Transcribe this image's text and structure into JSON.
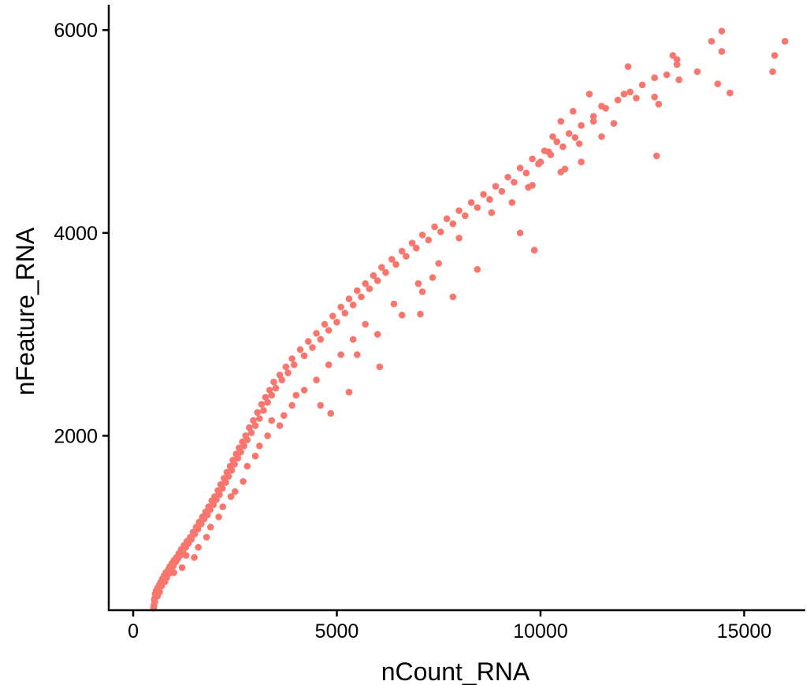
{
  "chart_data": {
    "type": "scatter",
    "title": "",
    "xlabel": "nCount_RNA",
    "ylabel": "nFeature_RNA",
    "xlim": [
      -600,
      16500
    ],
    "ylim": [
      280,
      6250
    ],
    "xticks": [
      0,
      5000,
      10000,
      15000
    ],
    "yticks": [
      2000,
      4000,
      6000
    ],
    "xtick_labels": [
      "0",
      "5000",
      "10000",
      "15000"
    ],
    "ytick_labels": [
      "2000",
      "4000",
      "6000"
    ],
    "grid": false,
    "legend": "none",
    "point_color": "#F8766D",
    "series": [
      {
        "points": [
          [
            510,
            330
          ],
          [
            520,
            390
          ],
          [
            540,
            440
          ],
          [
            560,
            470
          ],
          [
            600,
            500
          ],
          [
            640,
            530
          ],
          [
            680,
            560
          ],
          [
            720,
            590
          ],
          [
            760,
            620
          ],
          [
            800,
            650
          ],
          [
            860,
            680
          ],
          [
            900,
            710
          ],
          [
            950,
            740
          ],
          [
            1000,
            770
          ],
          [
            1060,
            800
          ],
          [
            1120,
            840
          ],
          [
            1180,
            880
          ],
          [
            1250,
            920
          ],
          [
            1320,
            960
          ],
          [
            1400,
            1000
          ],
          [
            1470,
            1050
          ],
          [
            1550,
            1100
          ],
          [
            1620,
            1150
          ],
          [
            1700,
            1200
          ],
          [
            1780,
            1250
          ],
          [
            1850,
            1300
          ],
          [
            1930,
            1360
          ],
          [
            2000,
            1400
          ],
          [
            2080,
            1460
          ],
          [
            2150,
            1520
          ],
          [
            2230,
            1580
          ],
          [
            2300,
            1640
          ],
          [
            2380,
            1700
          ],
          [
            2450,
            1760
          ],
          [
            2530,
            1820
          ],
          [
            2600,
            1880
          ],
          [
            2680,
            1940
          ],
          [
            2760,
            2000
          ],
          [
            2850,
            2080
          ],
          [
            2950,
            2150
          ],
          [
            3050,
            2230
          ],
          [
            3150,
            2310
          ],
          [
            3250,
            2380
          ],
          [
            3350,
            2450
          ],
          [
            3450,
            2530
          ],
          [
            3600,
            2600
          ],
          [
            3750,
            2680
          ],
          [
            3900,
            2760
          ],
          [
            4100,
            2850
          ],
          [
            4300,
            2930
          ],
          [
            4500,
            3010
          ],
          [
            4700,
            3100
          ],
          [
            4900,
            3180
          ],
          [
            5100,
            3270
          ],
          [
            5300,
            3350
          ],
          [
            5500,
            3430
          ],
          [
            5700,
            3500
          ],
          [
            5900,
            3580
          ],
          [
            6100,
            3660
          ],
          [
            6350,
            3740
          ],
          [
            6600,
            3820
          ],
          [
            6850,
            3900
          ],
          [
            7100,
            3980
          ],
          [
            7400,
            4060
          ],
          [
            7700,
            4140
          ],
          [
            8000,
            4220
          ],
          [
            8300,
            4300
          ],
          [
            8600,
            4380
          ],
          [
            8900,
            4460
          ],
          [
            9200,
            4550
          ],
          [
            9500,
            4640
          ],
          [
            9800,
            4730
          ],
          [
            10100,
            4810
          ],
          [
            10400,
            4900
          ],
          [
            10700,
            4980
          ],
          [
            11000,
            5060
          ],
          [
            11300,
            5150
          ],
          [
            11600,
            5230
          ],
          [
            11900,
            5310
          ],
          [
            12200,
            5390
          ],
          [
            12500,
            5460
          ],
          [
            12800,
            5530
          ],
          [
            500,
            300
          ],
          [
            530,
            360
          ],
          [
            600,
            420
          ],
          [
            650,
            460
          ],
          [
            700,
            520
          ],
          [
            780,
            560
          ],
          [
            820,
            600
          ],
          [
            880,
            640
          ],
          [
            940,
            690
          ],
          [
            990,
            720
          ],
          [
            1050,
            760
          ],
          [
            1100,
            790
          ],
          [
            1160,
            820
          ],
          [
            1220,
            860
          ],
          [
            1290,
            900
          ],
          [
            1360,
            940
          ],
          [
            1430,
            980
          ],
          [
            1510,
            1030
          ],
          [
            1590,
            1080
          ],
          [
            1670,
            1130
          ],
          [
            1740,
            1180
          ],
          [
            1820,
            1220
          ],
          [
            1890,
            1270
          ],
          [
            1970,
            1320
          ],
          [
            2040,
            1370
          ],
          [
            2120,
            1420
          ],
          [
            2190,
            1480
          ],
          [
            2270,
            1540
          ],
          [
            2340,
            1600
          ],
          [
            2420,
            1660
          ],
          [
            2490,
            1720
          ],
          [
            2570,
            1780
          ],
          [
            2640,
            1840
          ],
          [
            2720,
            1900
          ],
          [
            2800,
            1960
          ],
          [
            2900,
            2030
          ],
          [
            3000,
            2100
          ],
          [
            3100,
            2170
          ],
          [
            3200,
            2250
          ],
          [
            3300,
            2330
          ],
          [
            3400,
            2400
          ],
          [
            3500,
            2470
          ],
          [
            3650,
            2550
          ],
          [
            3800,
            2620
          ],
          [
            3950,
            2700
          ],
          [
            4200,
            2790
          ],
          [
            4400,
            2870
          ],
          [
            4600,
            2950
          ],
          [
            4800,
            3040
          ],
          [
            5000,
            3120
          ],
          [
            5200,
            3210
          ],
          [
            5400,
            3290
          ],
          [
            5600,
            3370
          ],
          [
            5800,
            3450
          ],
          [
            6000,
            3530
          ],
          [
            6200,
            3610
          ],
          [
            6450,
            3690
          ],
          [
            6700,
            3770
          ],
          [
            6950,
            3850
          ],
          [
            7250,
            3930
          ],
          [
            7550,
            4010
          ],
          [
            7850,
            4090
          ],
          [
            8150,
            4170
          ],
          [
            8450,
            4250
          ],
          [
            8750,
            4330
          ],
          [
            9050,
            4410
          ],
          [
            9350,
            4500
          ],
          [
            9650,
            4590
          ],
          [
            9950,
            4680
          ],
          [
            10250,
            4770
          ],
          [
            10550,
            4850
          ],
          [
            10850,
            4940
          ],
          [
            1200,
            700
          ],
          [
            1500,
            800
          ],
          [
            1800,
            1000
          ],
          [
            2100,
            1200
          ],
          [
            2400,
            1400
          ],
          [
            2700,
            1550
          ],
          [
            3000,
            1800
          ],
          [
            3300,
            2000
          ],
          [
            3600,
            2100
          ],
          [
            3900,
            2300
          ],
          [
            4200,
            2450
          ],
          [
            4500,
            2550
          ],
          [
            4800,
            2700
          ],
          [
            5100,
            2800
          ],
          [
            5400,
            2950
          ],
          [
            5700,
            3100
          ],
          [
            1000,
            650
          ],
          [
            1300,
            820
          ],
          [
            1600,
            900
          ],
          [
            1900,
            1100
          ],
          [
            2200,
            1300
          ],
          [
            2500,
            1450
          ],
          [
            2800,
            1700
          ],
          [
            3100,
            1900
          ],
          [
            3400,
            2150
          ],
          [
            3700,
            2200
          ],
          [
            4000,
            2400
          ],
          [
            4600,
            2300
          ],
          [
            5500,
            2800
          ],
          [
            6000,
            3000
          ],
          [
            6400,
            3300
          ],
          [
            7000,
            3500
          ],
          [
            7500,
            3700
          ],
          [
            8000,
            3950
          ],
          [
            8800,
            4200
          ],
          [
            9300,
            4300
          ],
          [
            9700,
            4450
          ],
          [
            10500,
            4600
          ],
          [
            11000,
            4700
          ],
          [
            11500,
            4950
          ],
          [
            4850,
            2220
          ],
          [
            5300,
            2430
          ],
          [
            6050,
            2680
          ],
          [
            6600,
            3190
          ],
          [
            7050,
            3200
          ],
          [
            7350,
            3560
          ],
          [
            7100,
            3420
          ],
          [
            7850,
            3370
          ],
          [
            8450,
            3640
          ],
          [
            9500,
            4000
          ],
          [
            9850,
            3830
          ],
          [
            9800,
            4470
          ],
          [
            10200,
            4800
          ],
          [
            10000,
            4700
          ],
          [
            10600,
            4630
          ],
          [
            10950,
            4880
          ],
          [
            10300,
            4950
          ],
          [
            10500,
            5100
          ],
          [
            10800,
            5200
          ],
          [
            11300,
            5100
          ],
          [
            11500,
            5250
          ],
          [
            11200,
            5370
          ],
          [
            11800,
            5080
          ],
          [
            12050,
            5370
          ],
          [
            12150,
            5640
          ],
          [
            12350,
            5330
          ],
          [
            12800,
            5340
          ],
          [
            12900,
            5270
          ],
          [
            12850,
            4760
          ],
          [
            13100,
            5560
          ],
          [
            13250,
            5750
          ],
          [
            13350,
            5660
          ],
          [
            13350,
            5710
          ],
          [
            13400,
            5510
          ],
          [
            13850,
            5590
          ],
          [
            14200,
            5890
          ],
          [
            14350,
            5470
          ],
          [
            14450,
            5990
          ],
          [
            14450,
            5790
          ],
          [
            14650,
            5380
          ],
          [
            15700,
            5590
          ],
          [
            15750,
            5750
          ],
          [
            16000,
            5890
          ]
        ]
      }
    ]
  }
}
